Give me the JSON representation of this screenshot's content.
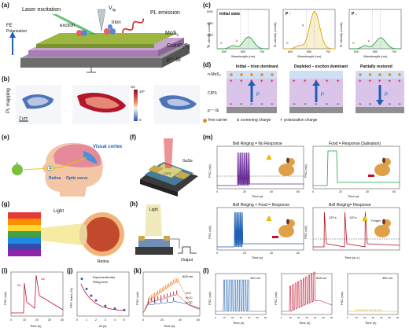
{
  "labels": {
    "a": "(a)",
    "b": "(b)",
    "c": "(c)",
    "d": "(d)",
    "e": "(e)",
    "f": "(f)",
    "g": "(g)",
    "h": "(h)",
    "i": "(i)",
    "j": "(j)",
    "k": "(k)",
    "l": "(l)",
    "m": "(m)"
  },
  "panel_a": {
    "laser": "Laser excitation",
    "vtip": "V",
    "vtip_sub": "tip",
    "pl": "PL emission",
    "exciton": "exciton",
    "trion": "trion",
    "mos2": "MoS",
    "mos2_sub": "2",
    "fe": "FE",
    "polarization": "Polarization",
    "cuinp": "CuInP",
    "cuinp_sub1": "2",
    "cuinp_mid": "S",
    "cuinp_sub2": "6",
    "psi": "p",
    "psi_sup": "++",
    "psi_end": "-Si"
  },
  "panel_b": {
    "side": "PL mapping",
    "scale": "2 μm",
    "cbar_title": "cts",
    "cbar_top": "10⁶",
    "cbar_bottom": "0"
  },
  "panel_c": {
    "titles": [
      "Initial state",
      "P ↑",
      "P ↓"
    ],
    "ylabel": "PL intensity (counts)",
    "xlabel": "Wavelength (nm)",
    "yticks": [
      "6000",
      "4000",
      "2000",
      "0"
    ],
    "xticks": [
      "600",
      "650",
      "700"
    ],
    "peak_a": "A",
    "peak_b": "B"
  },
  "panel_d": {
    "titles": [
      "Initial – trion dominant",
      "Depleted – exciton dominant",
      "Partially restored"
    ],
    "rows": [
      "n-MoS₂",
      "CIPS",
      "p⁺⁺-Si"
    ],
    "arrow_label": "P"
  },
  "legend": {
    "free": "free carrier",
    "screening": "screening charge",
    "polarization": "polarization charge"
  },
  "panel_e": {
    "visual": "Visual cortex",
    "retina": "Retina",
    "optic": "Optic nerve"
  },
  "panel_f": {
    "sio2": "SiO₂",
    "gase": "GaSe",
    "si": "Si",
    "cips": "CIPS"
  },
  "panel_g": {
    "light": "Light",
    "retina": "Retina"
  },
  "panel_h": {
    "light": "Light",
    "output": "Output"
  },
  "panel_i": {
    "ylabel": "PSC (nA)",
    "xlabel": "Time (s)",
    "xticks": [
      "0",
      "10",
      "20",
      "30",
      "40"
    ],
    "a1": "A1",
    "a2": "A2"
  },
  "panel_j": {
    "ylabel": "PPF index (%)",
    "xlabel": "Δt (s)",
    "xticks": [
      "0",
      "1",
      "2",
      "3",
      "4",
      "5"
    ],
    "legend1": "Experimental data",
    "legend2": "Fitting curve"
  },
  "panel_k": {
    "ylabel": "PSC (nA)",
    "xlabel": "Time (s)",
    "xticks": [
      "0",
      "20",
      "40",
      "60"
    ],
    "title": "808 nm",
    "n1": "N=5",
    "n2": "N=10",
    "n3": "N=20"
  },
  "panel_l": {
    "ylabel": "PSC (nA)",
    "xlabel": "Time (s)",
    "titles": [
      "450 nm",
      "808 nm",
      "980 nm"
    ],
    "xticks": [
      "0",
      "10",
      "20",
      "30",
      "40",
      "50",
      "60"
    ]
  },
  "panel_m": {
    "titles": [
      "Bell Ringing = No Response",
      "Food = Response (Salivation)",
      "Bell Ringing + Food = Response",
      "Bell Ringing= Response"
    ],
    "ylabel": "PSC (nA)",
    "xlabel": "Time (s)",
    "xlabel_last": "Time (a.u.)",
    "xticks": [
      "0",
      "20",
      "40",
      "60"
    ],
    "ann1": "120 s",
    "ann2": "120 s",
    "forget": "Forget"
  },
  "colors": {
    "mos2": "#8aa63a",
    "cips": "#c9a2c9",
    "si": "#8f8f8f",
    "purple": "#6a3d9a",
    "green": "#1aa640",
    "blue": "#1f5fb5",
    "red": "#b01020",
    "orange": "#e8872a",
    "pink": "#e28a9b",
    "yellow": "#d8b000"
  }
}
